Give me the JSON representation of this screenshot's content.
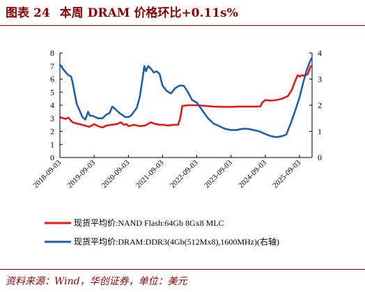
{
  "header": {
    "prefix": "图表",
    "number": "24",
    "title": "本周 DRAM 价格环比+0.11s%"
  },
  "footer": {
    "source": "资料来源：Wind，华创证券，单位：美元"
  },
  "colors": {
    "nand": "#e31a1c",
    "dram": "#1f5fa8",
    "accent": "#8b0000"
  },
  "chart_data": {
    "type": "line",
    "x_tick_labels": [
      "2018-09-03",
      "2019-09-03",
      "2020-09-03",
      "2021-09-03",
      "2022-09-03",
      "2023-09-03",
      "2024-09-03",
      "2025-09-03"
    ],
    "xlim": [
      "2018-09-03",
      "2026-01-15"
    ],
    "ylim_left": [
      0,
      8
    ],
    "ylim_right": [
      0,
      4
    ],
    "y_ticks_left": [
      "0",
      "1",
      "2",
      "3",
      "4",
      "5",
      "6",
      "7",
      "8"
    ],
    "y_ticks_right": [
      "0",
      "1",
      "2",
      "3",
      "4"
    ],
    "legend_position": "bottom",
    "grid": false,
    "series": [
      {
        "name": "现货平均价:NAND Flash:64Gb 8Gx8 MLC",
        "axis": "left",
        "points": [
          [
            "2018-09-03",
            3.1
          ],
          [
            "2018-11-01",
            2.95
          ],
          [
            "2018-12-01",
            3.05
          ],
          [
            "2019-01-15",
            2.7
          ],
          [
            "2019-03-01",
            2.6
          ],
          [
            "2019-05-01",
            2.5
          ],
          [
            "2019-06-15",
            2.4
          ],
          [
            "2019-07-15",
            2.35
          ],
          [
            "2019-09-03",
            2.55
          ],
          [
            "2019-10-15",
            2.4
          ],
          [
            "2019-12-01",
            2.3
          ],
          [
            "2020-01-15",
            2.45
          ],
          [
            "2020-03-01",
            2.5
          ],
          [
            "2020-05-01",
            2.55
          ],
          [
            "2020-06-15",
            2.7
          ],
          [
            "2020-07-15",
            2.5
          ],
          [
            "2020-08-15",
            2.55
          ],
          [
            "2020-09-03",
            2.4
          ],
          [
            "2020-11-01",
            2.5
          ],
          [
            "2021-01-01",
            2.4
          ],
          [
            "2021-03-01",
            2.45
          ],
          [
            "2021-05-01",
            2.7
          ],
          [
            "2021-06-01",
            2.6
          ],
          [
            "2021-08-01",
            2.5
          ],
          [
            "2021-09-03",
            2.5
          ],
          [
            "2021-11-01",
            2.45
          ],
          [
            "2022-01-01",
            2.5
          ],
          [
            "2022-02-15",
            2.5
          ],
          [
            "2022-03-10",
            3.0
          ],
          [
            "2022-04-01",
            3.95
          ],
          [
            "2022-06-01",
            4.0
          ],
          [
            "2022-09-03",
            4.0
          ],
          [
            "2022-12-01",
            3.95
          ],
          [
            "2023-03-01",
            3.9
          ],
          [
            "2023-06-01",
            3.88
          ],
          [
            "2023-09-03",
            3.88
          ],
          [
            "2023-12-01",
            3.9
          ],
          [
            "2024-03-01",
            3.9
          ],
          [
            "2024-06-01",
            3.9
          ],
          [
            "2024-07-15",
            3.92
          ],
          [
            "2024-08-01",
            4.2
          ],
          [
            "2024-09-03",
            4.4
          ],
          [
            "2024-11-01",
            4.35
          ],
          [
            "2025-01-01",
            4.4
          ],
          [
            "2025-03-01",
            4.5
          ],
          [
            "2025-05-01",
            4.7
          ],
          [
            "2025-06-15",
            5.2
          ],
          [
            "2025-07-15",
            5.8
          ],
          [
            "2025-08-15",
            6.3
          ],
          [
            "2025-09-03",
            6.2
          ],
          [
            "2025-10-01",
            6.3
          ],
          [
            "2025-11-01",
            6.25
          ],
          [
            "2025-12-01",
            6.4
          ],
          [
            "2026-01-01",
            7.0
          ]
        ]
      },
      {
        "name": "现货平均价:DRAM:DDR3(4Gb(512Mx8),1600MHz)(右轴)",
        "axis": "right",
        "points": [
          [
            "2018-09-03",
            3.55
          ],
          [
            "2018-10-15",
            3.35
          ],
          [
            "2018-12-01",
            3.15
          ],
          [
            "2019-01-01",
            3.1
          ],
          [
            "2019-01-15",
            2.9
          ],
          [
            "2019-03-01",
            2.05
          ],
          [
            "2019-05-01",
            1.55
          ],
          [
            "2019-06-01",
            1.45
          ],
          [
            "2019-07-01",
            1.75
          ],
          [
            "2019-07-20",
            1.6
          ],
          [
            "2019-08-15",
            1.6
          ],
          [
            "2019-10-15",
            1.5
          ],
          [
            "2019-12-01",
            1.5
          ],
          [
            "2020-01-15",
            1.65
          ],
          [
            "2020-02-15",
            1.7
          ],
          [
            "2020-03-15",
            1.95
          ],
          [
            "2020-04-01",
            1.9
          ],
          [
            "2020-06-01",
            1.7
          ],
          [
            "2020-08-01",
            1.55
          ],
          [
            "2020-09-03",
            1.55
          ],
          [
            "2020-10-01",
            1.6
          ],
          [
            "2020-12-01",
            1.9
          ],
          [
            "2021-01-01",
            2.3
          ],
          [
            "2021-02-01",
            3.0
          ],
          [
            "2021-02-20",
            3.5
          ],
          [
            "2021-03-10",
            3.3
          ],
          [
            "2021-04-01",
            3.5
          ],
          [
            "2021-05-01",
            3.4
          ],
          [
            "2021-06-01",
            3.25
          ],
          [
            "2021-07-01",
            3.3
          ],
          [
            "2021-08-01",
            3.2
          ],
          [
            "2021-09-03",
            2.75
          ],
          [
            "2021-10-15",
            2.55
          ],
          [
            "2021-12-01",
            2.45
          ],
          [
            "2022-01-15",
            2.65
          ],
          [
            "2022-03-01",
            2.75
          ],
          [
            "2022-04-15",
            2.75
          ],
          [
            "2022-05-15",
            2.6
          ],
          [
            "2022-06-15",
            2.4
          ],
          [
            "2022-07-15",
            2.2
          ],
          [
            "2022-09-03",
            2.1
          ],
          [
            "2022-11-01",
            1.8
          ],
          [
            "2023-01-01",
            1.5
          ],
          [
            "2023-03-01",
            1.3
          ],
          [
            "2023-05-01",
            1.2
          ],
          [
            "2023-07-01",
            1.1
          ],
          [
            "2023-09-03",
            1.05
          ],
          [
            "2023-11-01",
            1.05
          ],
          [
            "2024-01-01",
            1.1
          ],
          [
            "2024-03-01",
            1.1
          ],
          [
            "2024-05-01",
            1.05
          ],
          [
            "2024-07-01",
            1.0
          ],
          [
            "2024-09-03",
            0.9
          ],
          [
            "2024-11-01",
            0.82
          ],
          [
            "2025-01-01",
            0.78
          ],
          [
            "2025-03-01",
            0.82
          ],
          [
            "2025-04-15",
            0.88
          ],
          [
            "2025-06-01",
            1.3
          ],
          [
            "2025-07-15",
            1.75
          ],
          [
            "2025-09-03",
            2.3
          ],
          [
            "2025-10-15",
            2.9
          ],
          [
            "2025-11-15",
            3.3
          ],
          [
            "2025-12-15",
            3.6
          ],
          [
            "2026-01-10",
            3.8
          ]
        ]
      }
    ]
  }
}
